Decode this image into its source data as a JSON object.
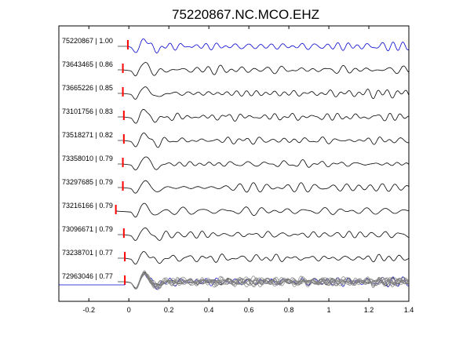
{
  "chart_data": {
    "type": "line",
    "title": "75220867.NC.MCO.EHZ",
    "xlabel": "",
    "ylabel": "",
    "xlim": [
      -0.35,
      1.4
    ],
    "xticks": [
      -0.2,
      0,
      0.2,
      0.4,
      0.6,
      0.8,
      1,
      1.2,
      1.4
    ],
    "xtick_labels": [
      "-0.2",
      "0",
      "0.2",
      "0.4",
      "0.6",
      "0.8",
      "1",
      "1.2",
      "1.4"
    ],
    "grid": false,
    "colors": {
      "reference": "#0000cc",
      "trace": "#000000",
      "pick": "#ff0000",
      "stack_trace": "#808080"
    },
    "traces": [
      {
        "label": "75220867 | 1.00",
        "reference": true,
        "pick_time": -0.005,
        "peak_time": 0.045
      },
      {
        "label": "73643465 | 0.86",
        "reference": false,
        "pick_time": -0.03,
        "peak_time": 0.045
      },
      {
        "label": "73665226 | 0.85",
        "reference": false,
        "pick_time": -0.03,
        "peak_time": 0.045
      },
      {
        "label": "73101756 | 0.83",
        "reference": false,
        "pick_time": -0.025,
        "peak_time": 0.045
      },
      {
        "label": "73518271 | 0.82",
        "reference": false,
        "pick_time": -0.025,
        "peak_time": 0.045
      },
      {
        "label": "73358010 | 0.79",
        "reference": false,
        "pick_time": -0.03,
        "peak_time": 0.045
      },
      {
        "label": "73297685 | 0.79",
        "reference": false,
        "pick_time": -0.03,
        "peak_time": 0.045
      },
      {
        "label": "73216166 | 0.79",
        "reference": false,
        "pick_time": -0.065,
        "peak_time": 0.045
      },
      {
        "label": "73096671 | 0.79",
        "reference": false,
        "pick_time": -0.025,
        "peak_time": 0.045
      },
      {
        "label": "73238701 | 0.77",
        "reference": false,
        "pick_time": -0.02,
        "peak_time": 0.045
      },
      {
        "label": "72963046 | 0.77",
        "reference": false,
        "pick_time": -0.02,
        "peak_time": 0.045
      }
    ],
    "stack": {
      "label": "",
      "count": 11
    }
  }
}
